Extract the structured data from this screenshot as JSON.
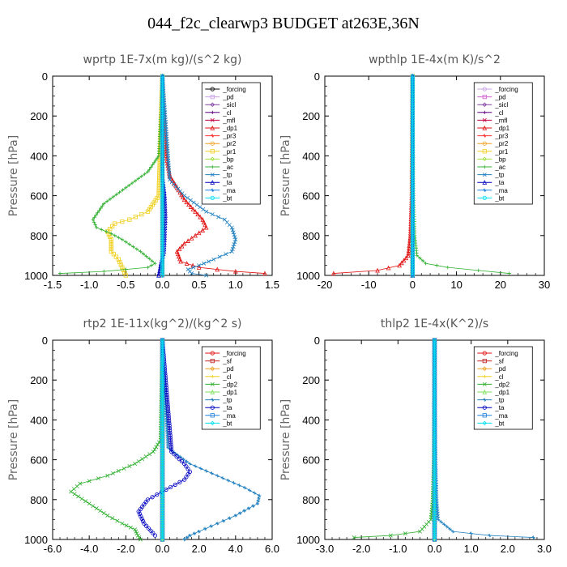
{
  "page": {
    "title": "044_f2c_clearwp3  BUDGET at263E,36N"
  },
  "chart_data": [
    {
      "type": "line",
      "title": "wprtp  1E-7x(m kg)/(s^2 kg)",
      "ylabel": "Pressure [hPa]",
      "xlim": [
        -1.5,
        1.5
      ],
      "ylim": [
        1000,
        0
      ],
      "xticks": [
        -1.5,
        -1.0,
        -0.5,
        0.0,
        0.5,
        1.0,
        1.5
      ],
      "xtick_labels": [
        "-1.5",
        "-1.0",
        "-0.5",
        "0.0",
        "0.5",
        "1.0",
        "1.5"
      ],
      "yticks": [
        0,
        200,
        400,
        600,
        800,
        1000
      ],
      "series": [
        {
          "name": "_forcing",
          "color": "#000000",
          "x": [
            0,
            0
          ],
          "y": [
            0,
            1000
          ]
        },
        {
          "name": "_pd",
          "color": "#c8a0e6",
          "x": [
            0,
            0
          ],
          "y": [
            0,
            1000
          ]
        },
        {
          "name": "_sicl",
          "color": "#8040a0",
          "x": [
            0,
            0
          ],
          "y": [
            0,
            1000
          ]
        },
        {
          "name": "_cl",
          "color": "#600080",
          "x": [
            0,
            0
          ],
          "y": [
            0,
            1000
          ]
        },
        {
          "name": "_mfl",
          "color": "#c00040",
          "x": [
            0,
            0
          ],
          "y": [
            0,
            1000
          ]
        },
        {
          "name": "_dp1",
          "color": "#e01010",
          "x": [
            0,
            0.05,
            0.1,
            0.2,
            0.3,
            0.45,
            0.55,
            0.6,
            0.45,
            0.3,
            0.2,
            0.25,
            0.5,
            1.0,
            1.4
          ],
          "y": [
            0,
            400,
            500,
            560,
            620,
            680,
            720,
            760,
            800,
            840,
            880,
            930,
            960,
            980,
            990
          ]
        },
        {
          "name": "_pr3",
          "color": "#ff3030",
          "x": [
            0,
            0
          ],
          "y": [
            0,
            1000
          ]
        },
        {
          "name": "_pr2",
          "color": "#f0a020",
          "x": [
            0,
            0
          ],
          "y": [
            0,
            1000
          ]
        },
        {
          "name": "_pr1",
          "color": "#f0d020",
          "x": [
            0,
            -0.05,
            -0.2,
            -0.45,
            -0.65,
            -0.75,
            -0.7,
            -0.7,
            -0.6,
            -0.55,
            -0.5
          ],
          "y": [
            0,
            600,
            680,
            720,
            740,
            780,
            820,
            880,
            920,
            960,
            1000
          ]
        },
        {
          "name": "_bp",
          "color": "#a0e040",
          "x": [
            0,
            0
          ],
          "y": [
            0,
            1000
          ]
        },
        {
          "name": "_ac",
          "color": "#30b030",
          "x": [
            0,
            -0.05,
            -0.2,
            -0.5,
            -0.8,
            -0.95,
            -0.9,
            -0.7,
            -0.55,
            -0.3,
            -0.1,
            -0.2,
            -0.8,
            -1.4
          ],
          "y": [
            0,
            400,
            480,
            560,
            640,
            720,
            760,
            790,
            820,
            880,
            940,
            960,
            980,
            990
          ]
        },
        {
          "name": "_tp",
          "color": "#2080c0",
          "x": [
            0,
            0.1,
            0.3,
            0.6,
            0.85,
            0.95,
            1.0,
            0.95,
            0.7,
            0.5,
            0.35,
            0.4,
            0.6
          ],
          "y": [
            0,
            520,
            600,
            680,
            720,
            760,
            820,
            880,
            920,
            950,
            970,
            990,
            1000
          ]
        },
        {
          "name": "_ta",
          "color": "#0000c0",
          "x": [
            0,
            0.0,
            0.03,
            0.04,
            0.03,
            0.02,
            -0.02,
            -0.05
          ],
          "y": [
            0,
            500,
            600,
            700,
            800,
            880,
            940,
            1000
          ]
        },
        {
          "name": "_ma",
          "color": "#2080e0",
          "x": [
            0,
            0
          ],
          "y": [
            0,
            1000
          ]
        },
        {
          "name": "_bt",
          "color": "#00e0f0",
          "x": [
            0,
            0
          ],
          "y": [
            0,
            1000
          ]
        }
      ]
    },
    {
      "type": "line",
      "title": "wpthlp  1E-4x(m K)/s^2",
      "ylabel": "Pressure [hPa]",
      "xlim": [
        -20,
        30
      ],
      "ylim": [
        1000,
        0
      ],
      "xticks": [
        -20,
        -10,
        0,
        10,
        20,
        30
      ],
      "xtick_labels": [
        "-20",
        "-10",
        "0",
        "10",
        "20",
        "30"
      ],
      "yticks": [
        0,
        200,
        400,
        600,
        800,
        1000
      ],
      "series": [
        {
          "name": "_forcing",
          "color": "#c8a0e6",
          "x": [
            0,
            0
          ],
          "y": [
            0,
            1000
          ]
        },
        {
          "name": "_pd",
          "color": "#d060d0",
          "x": [
            0,
            0
          ],
          "y": [
            0,
            1000
          ]
        },
        {
          "name": "_sicl",
          "color": "#8040a0",
          "x": [
            0,
            0
          ],
          "y": [
            0,
            1000
          ]
        },
        {
          "name": "_cl",
          "color": "#600080",
          "x": [
            0,
            0
          ],
          "y": [
            0,
            1000
          ]
        },
        {
          "name": "_mfl",
          "color": "#c00040",
          "x": [
            0,
            0
          ],
          "y": [
            0,
            1000
          ]
        },
        {
          "name": "_dp1",
          "color": "#e01010",
          "x": [
            0,
            -0.2,
            -0.5,
            -1.0,
            -3.0,
            -8.0,
            -18.0
          ],
          "y": [
            0,
            600,
            800,
            900,
            950,
            975,
            990
          ]
        },
        {
          "name": "_pr3",
          "color": "#ff3030",
          "x": [
            0,
            0
          ],
          "y": [
            0,
            1000
          ]
        },
        {
          "name": "_pr2",
          "color": "#f0a020",
          "x": [
            0,
            0
          ],
          "y": [
            0,
            1000
          ]
        },
        {
          "name": "_pr1",
          "color": "#f0d020",
          "x": [
            0,
            0
          ],
          "y": [
            0,
            1000
          ]
        },
        {
          "name": "_bp",
          "color": "#a0e040",
          "x": [
            0,
            0
          ],
          "y": [
            0,
            1000
          ]
        },
        {
          "name": "_ac",
          "color": "#30b030",
          "x": [
            0,
            0.2,
            0.5,
            1.0,
            3.0,
            8.0,
            15.0,
            22.0
          ],
          "y": [
            0,
            600,
            800,
            900,
            940,
            960,
            975,
            990
          ]
        },
        {
          "name": "_tp",
          "color": "#2080c0",
          "x": [
            0,
            0
          ],
          "y": [
            0,
            1000
          ]
        },
        {
          "name": "_ta",
          "color": "#0000c0",
          "x": [
            0,
            0
          ],
          "y": [
            0,
            1000
          ]
        },
        {
          "name": "_ma",
          "color": "#2080e0",
          "x": [
            0,
            0
          ],
          "y": [
            0,
            1000
          ]
        },
        {
          "name": "_bt",
          "color": "#00e0f0",
          "x": [
            0,
            0
          ],
          "y": [
            0,
            1000
          ]
        }
      ]
    },
    {
      "type": "line",
      "title": "rtp2  1E-11x(kg^2)/(kg^2 s)",
      "ylabel": "Pressure [hPa]",
      "xlim": [
        -6,
        6
      ],
      "ylim": [
        1000,
        0
      ],
      "xticks": [
        -6,
        -4,
        -2,
        0,
        2,
        4,
        6
      ],
      "xtick_labels": [
        "-6.0",
        "-4.0",
        "-2.0",
        "0.0",
        "2.0",
        "4.0",
        "6.0"
      ],
      "yticks": [
        0,
        200,
        400,
        600,
        800,
        1000
      ],
      "series": [
        {
          "name": "_forcing",
          "color": "#e01010",
          "x": [
            0,
            0
          ],
          "y": [
            0,
            1000
          ]
        },
        {
          "name": "_sf",
          "color": "#c02020",
          "x": [
            0,
            0
          ],
          "y": [
            0,
            1000
          ]
        },
        {
          "name": "_pd",
          "color": "#f0a020",
          "x": [
            0,
            0
          ],
          "y": [
            0,
            1000
          ]
        },
        {
          "name": "_cl",
          "color": "#f0d020",
          "x": [
            0,
            0
          ],
          "y": [
            0,
            1000
          ]
        },
        {
          "name": "_dp2",
          "color": "#30b030",
          "x": [
            0,
            -0.1,
            -0.5,
            -1.5,
            -3.0,
            -4.5,
            -5.0,
            -4.0,
            -3.0,
            -2.2,
            -1.5,
            -1.4,
            -1.2
          ],
          "y": [
            0,
            500,
            560,
            620,
            680,
            720,
            760,
            820,
            880,
            920,
            950,
            970,
            1000
          ]
        },
        {
          "name": "_dp1",
          "color": "#80e060",
          "x": [
            0,
            0
          ],
          "y": [
            0,
            1000
          ]
        },
        {
          "name": "_tp",
          "color": "#2080c0",
          "x": [
            0,
            0.3,
            1.5,
            3.0,
            4.5,
            5.3,
            5.2,
            4.0,
            3.0,
            2.0,
            1.5,
            1.2
          ],
          "y": [
            0,
            540,
            620,
            680,
            740,
            780,
            820,
            880,
            920,
            960,
            980,
            1000
          ]
        },
        {
          "name": "_ta",
          "color": "#0000c0",
          "x": [
            0,
            0.5,
            1.2,
            1.5,
            1.2,
            0.2,
            -0.8,
            -1.3,
            -1.0,
            -0.4
          ],
          "y": [
            0,
            560,
            620,
            660,
            700,
            750,
            800,
            860,
            920,
            980
          ]
        },
        {
          "name": "_ma",
          "color": "#2080e0",
          "x": [
            0,
            0
          ],
          "y": [
            0,
            1000
          ]
        },
        {
          "name": "_bt",
          "color": "#00e0f0",
          "x": [
            0,
            0
          ],
          "y": [
            0,
            1000
          ]
        }
      ]
    },
    {
      "type": "line",
      "title": "thlp2  1E-4x(K^2)/s",
      "ylabel": "Pressure [hPa]",
      "xlim": [
        -3,
        3
      ],
      "ylim": [
        1000,
        0
      ],
      "xticks": [
        -3,
        -2,
        -1,
        0,
        1,
        2,
        3
      ],
      "xtick_labels": [
        "-3.0",
        "-2.0",
        "-1.0",
        "0.0",
        "1.0",
        "2.0",
        "3.0"
      ],
      "yticks": [
        0,
        200,
        400,
        600,
        800,
        1000
      ],
      "series": [
        {
          "name": "_forcing",
          "color": "#e01010",
          "x": [
            0,
            0
          ],
          "y": [
            0,
            1000
          ]
        },
        {
          "name": "_sf",
          "color": "#c02020",
          "x": [
            0,
            0
          ],
          "y": [
            0,
            1000
          ]
        },
        {
          "name": "_pd",
          "color": "#f0a020",
          "x": [
            0,
            0
          ],
          "y": [
            0,
            1000
          ]
        },
        {
          "name": "_cl",
          "color": "#f0d020",
          "x": [
            0,
            0
          ],
          "y": [
            0,
            1000
          ]
        },
        {
          "name": "_dp2",
          "color": "#30b030",
          "x": [
            0,
            -0.02,
            -0.05,
            -0.1,
            -0.4,
            -1.2,
            -2.2
          ],
          "y": [
            0,
            600,
            800,
            900,
            960,
            980,
            990
          ]
        },
        {
          "name": "_dp1",
          "color": "#80e060",
          "x": [
            0,
            0
          ],
          "y": [
            0,
            1000
          ]
        },
        {
          "name": "_tp",
          "color": "#2080c0",
          "x": [
            0,
            0.03,
            0.06,
            0.1,
            0.5,
            1.5,
            2.7
          ],
          "y": [
            0,
            600,
            800,
            900,
            960,
            980,
            990
          ]
        },
        {
          "name": "_ta",
          "color": "#0000c0",
          "x": [
            0,
            0
          ],
          "y": [
            0,
            1000
          ]
        },
        {
          "name": "_ma",
          "color": "#2080e0",
          "x": [
            0,
            0
          ],
          "y": [
            0,
            1000
          ]
        },
        {
          "name": "_bt",
          "color": "#00e0f0",
          "x": [
            0,
            0
          ],
          "y": [
            0,
            1000
          ]
        }
      ]
    }
  ]
}
